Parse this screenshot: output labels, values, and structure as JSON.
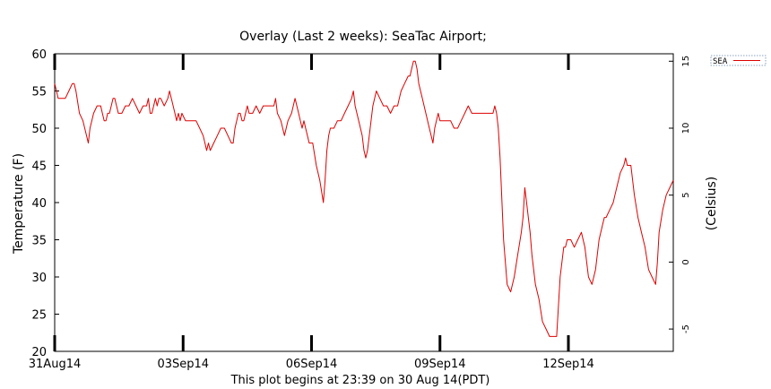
{
  "chart_data": {
    "type": "line",
    "title": "Overlay (Last 2 weeks): SeaTac Airport;",
    "ylabel": "Temperature (F)",
    "y2label": "(Celsius)",
    "footer": "This plot begins at 23:39 on 30 Aug 14(PDT)",
    "xlim_days": [
      0,
      14.45
    ],
    "ylim": [
      20,
      60
    ],
    "y_ticks": [
      20,
      25,
      30,
      35,
      40,
      45,
      50,
      55,
      60
    ],
    "y2_ticks": [
      -5,
      0,
      5,
      10,
      15
    ],
    "x_ticks": [
      {
        "day": 0,
        "label": "31Aug14"
      },
      {
        "day": 3,
        "label": "03Sep14"
      },
      {
        "day": 6,
        "label": "06Sep14"
      },
      {
        "day": 9,
        "label": "09Sep14"
      },
      {
        "day": 12,
        "label": "12Sep14"
      }
    ],
    "grid": false,
    "legend": "top-right",
    "series": [
      {
        "name": "SEA",
        "color": "#dd0000",
        "points": [
          [
            0.0,
            56
          ],
          [
            0.05,
            55
          ],
          [
            0.1,
            54
          ],
          [
            0.2,
            54
          ],
          [
            0.3,
            54
          ],
          [
            0.4,
            55
          ],
          [
            0.5,
            56
          ],
          [
            0.55,
            56
          ],
          [
            0.6,
            55
          ],
          [
            0.7,
            52
          ],
          [
            0.8,
            51
          ],
          [
            0.9,
            49
          ],
          [
            0.95,
            48
          ],
          [
            1.0,
            50
          ],
          [
            1.05,
            51
          ],
          [
            1.1,
            52
          ],
          [
            1.2,
            53
          ],
          [
            1.3,
            53
          ],
          [
            1.35,
            52
          ],
          [
            1.4,
            51
          ],
          [
            1.45,
            51
          ],
          [
            1.5,
            52
          ],
          [
            1.55,
            52
          ],
          [
            1.6,
            53
          ],
          [
            1.65,
            54
          ],
          [
            1.7,
            54
          ],
          [
            1.75,
            53
          ],
          [
            1.8,
            52
          ],
          [
            1.9,
            52
          ],
          [
            2.0,
            53
          ],
          [
            2.1,
            53
          ],
          [
            2.2,
            54
          ],
          [
            2.3,
            53
          ],
          [
            2.4,
            52
          ],
          [
            2.5,
            53
          ],
          [
            2.6,
            53
          ],
          [
            2.65,
            54
          ],
          [
            2.7,
            52
          ],
          [
            2.75,
            52
          ],
          [
            2.8,
            53
          ],
          [
            2.85,
            54
          ],
          [
            2.9,
            53
          ],
          [
            2.95,
            54
          ],
          [
            3.0,
            54
          ],
          [
            3.1,
            53
          ],
          [
            3.2,
            54
          ],
          [
            3.25,
            55
          ],
          [
            3.3,
            54
          ],
          [
            3.4,
            52
          ],
          [
            3.45,
            51
          ],
          [
            3.5,
            52
          ],
          [
            3.55,
            51
          ],
          [
            3.6,
            52
          ],
          [
            3.7,
            51
          ],
          [
            3.8,
            51
          ],
          [
            3.9,
            51
          ],
          [
            4.0,
            51
          ],
          [
            4.1,
            50
          ],
          [
            4.2,
            49
          ],
          [
            4.25,
            48
          ],
          [
            4.3,
            47
          ],
          [
            4.35,
            48
          ],
          [
            4.4,
            47
          ],
          [
            4.5,
            48
          ],
          [
            4.6,
            49
          ],
          [
            4.7,
            50
          ],
          [
            4.8,
            50
          ],
          [
            4.9,
            49
          ],
          [
            5.0,
            48
          ],
          [
            5.05,
            48
          ],
          [
            5.1,
            50
          ],
          [
            5.2,
            52
          ],
          [
            5.25,
            52
          ],
          [
            5.3,
            51
          ],
          [
            5.35,
            51
          ],
          [
            5.4,
            52
          ],
          [
            5.45,
            53
          ],
          [
            5.5,
            52
          ],
          [
            5.6,
            52
          ],
          [
            5.7,
            53
          ],
          [
            5.8,
            52
          ],
          [
            5.9,
            53
          ],
          [
            6.0,
            53
          ],
          [
            6.05,
            53
          ],
          [
            6.1,
            53
          ],
          [
            6.2,
            53
          ],
          [
            6.25,
            54
          ],
          [
            6.3,
            52
          ],
          [
            6.4,
            51
          ],
          [
            6.5,
            49
          ],
          [
            6.6,
            51
          ],
          [
            6.7,
            52
          ],
          [
            6.8,
            54
          ],
          [
            6.85,
            53
          ],
          [
            6.9,
            52
          ],
          [
            6.95,
            51
          ],
          [
            7.0,
            50
          ],
          [
            7.05,
            51
          ],
          [
            7.1,
            50
          ],
          [
            7.2,
            48
          ],
          [
            7.3,
            48
          ],
          [
            7.4,
            45
          ],
          [
            7.5,
            43
          ],
          [
            7.6,
            40
          ],
          [
            7.65,
            43
          ],
          [
            7.7,
            47
          ],
          [
            7.75,
            49
          ],
          [
            7.8,
            50
          ],
          [
            7.9,
            50
          ],
          [
            8.0,
            51
          ],
          [
            8.1,
            51
          ],
          [
            8.2,
            52
          ],
          [
            8.3,
            53
          ],
          [
            8.4,
            54
          ],
          [
            8.45,
            55
          ],
          [
            8.5,
            53
          ],
          [
            8.6,
            51
          ],
          [
            8.7,
            49
          ],
          [
            8.75,
            47
          ],
          [
            8.8,
            46
          ],
          [
            8.85,
            47
          ],
          [
            8.9,
            49
          ],
          [
            8.95,
            51
          ],
          [
            9.0,
            53
          ],
          [
            9.1,
            55
          ],
          [
            9.2,
            54
          ],
          [
            9.3,
            53
          ],
          [
            9.4,
            53
          ],
          [
            9.5,
            52
          ],
          [
            9.6,
            53
          ],
          [
            9.7,
            53
          ],
          [
            9.75,
            54
          ],
          [
            9.8,
            55
          ],
          [
            9.9,
            56
          ],
          [
            10.0,
            57
          ],
          [
            10.05,
            57
          ],
          [
            10.1,
            58
          ],
          [
            10.15,
            59
          ],
          [
            10.2,
            59
          ],
          [
            10.25,
            58
          ],
          [
            10.3,
            56
          ],
          [
            10.4,
            54
          ],
          [
            10.5,
            52
          ],
          [
            10.6,
            50
          ],
          [
            10.65,
            49
          ],
          [
            10.7,
            48
          ],
          [
            10.75,
            50
          ],
          [
            10.8,
            51
          ],
          [
            10.85,
            52
          ],
          [
            10.9,
            51
          ],
          [
            11.0,
            51
          ],
          [
            11.1,
            51
          ],
          [
            11.2,
            51
          ],
          [
            11.3,
            50
          ],
          [
            11.4,
            50
          ],
          [
            11.5,
            51
          ],
          [
            11.6,
            52
          ],
          [
            11.7,
            53
          ],
          [
            11.8,
            52
          ],
          [
            11.9,
            52
          ],
          [
            12.0,
            52
          ],
          [
            12.1,
            52
          ],
          [
            12.2,
            52
          ],
          [
            12.3,
            52
          ],
          [
            12.4,
            52
          ],
          [
            12.45,
            53
          ],
          [
            12.5,
            52
          ],
          [
            12.55,
            50
          ],
          [
            12.6,
            46
          ],
          [
            12.7,
            35
          ],
          [
            12.8,
            29
          ],
          [
            12.9,
            28
          ],
          [
            13.0,
            30
          ],
          [
            13.1,
            33
          ],
          [
            13.2,
            36
          ],
          [
            13.25,
            38
          ],
          [
            13.3,
            42
          ],
          [
            13.35,
            40
          ],
          [
            13.4,
            38
          ],
          [
            13.45,
            36
          ],
          [
            13.5,
            33
          ],
          [
            13.6,
            29
          ],
          [
            13.7,
            27
          ],
          [
            13.8,
            24
          ],
          [
            13.9,
            23
          ],
          [
            14.0,
            22
          ],
          [
            14.1,
            22
          ],
          [
            14.2,
            22
          ],
          [
            14.3,
            30
          ],
          [
            14.35,
            32
          ],
          [
            14.4,
            34
          ],
          [
            14.45,
            34
          ],
          [
            14.5,
            35
          ],
          [
            14.6,
            35
          ],
          [
            14.7,
            34
          ],
          [
            14.8,
            35
          ],
          [
            14.9,
            36
          ],
          [
            15.0,
            34
          ],
          [
            15.1,
            30
          ],
          [
            15.2,
            29
          ],
          [
            15.3,
            31
          ],
          [
            15.4,
            35
          ],
          [
            15.5,
            37
          ],
          [
            15.55,
            38
          ],
          [
            15.6,
            38
          ],
          [
            15.7,
            39
          ],
          [
            15.8,
            40
          ],
          [
            15.85,
            41
          ],
          [
            15.9,
            42
          ],
          [
            16.0,
            44
          ],
          [
            16.1,
            45
          ],
          [
            16.15,
            46
          ],
          [
            16.2,
            45
          ],
          [
            16.3,
            45
          ],
          [
            16.4,
            41
          ],
          [
            16.5,
            38
          ],
          [
            16.6,
            36
          ],
          [
            16.7,
            34
          ],
          [
            16.8,
            31
          ],
          [
            16.9,
            30
          ],
          [
            17.0,
            29
          ],
          [
            17.05,
            32
          ],
          [
            17.1,
            36
          ],
          [
            17.2,
            39
          ],
          [
            17.3,
            41
          ],
          [
            17.4,
            42
          ],
          [
            17.5,
            43
          ]
        ]
      }
    ]
  }
}
